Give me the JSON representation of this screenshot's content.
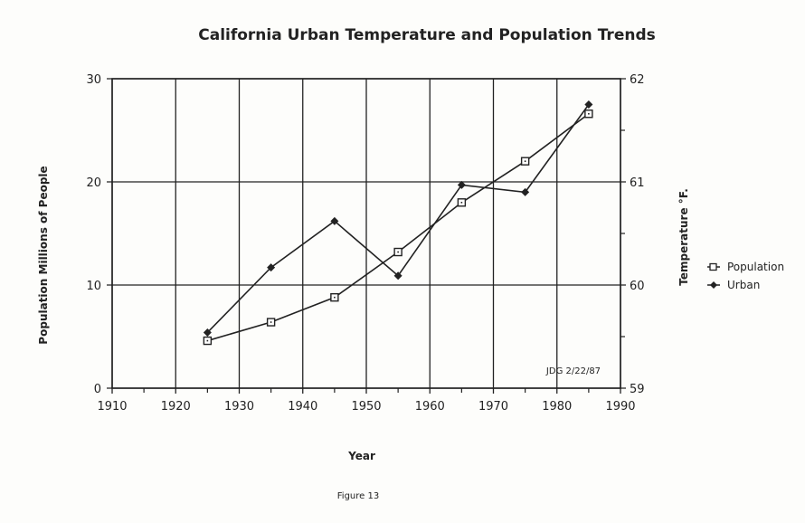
{
  "chart_data": {
    "type": "line",
    "title": "California Urban Temperature and Population Trends",
    "xlabel": "Year",
    "ylabel": "Population Millions of People",
    "y2label": "Temperature °F.",
    "xlim": [
      1910,
      1990
    ],
    "ylim": [
      0,
      30
    ],
    "y2lim": [
      59,
      62
    ],
    "x_ticks": [
      "1910",
      "1920",
      "1930",
      "1940",
      "1950",
      "1960",
      "1970",
      "1980",
      "1990"
    ],
    "y_ticks": [
      "0",
      "10",
      "20",
      "30"
    ],
    "y2_ticks": [
      "59",
      "60",
      "61",
      "62"
    ],
    "grid": true,
    "legend_position": "right",
    "x": [
      1925,
      1935,
      1945,
      1955,
      1965,
      1975,
      1985
    ],
    "series": [
      {
        "name": "Population",
        "axis": "left",
        "marker": "square",
        "values": [
          4.6,
          6.4,
          8.8,
          13.2,
          18.0,
          22.0,
          26.6
        ]
      },
      {
        "name": "Urban",
        "axis": "right",
        "marker": "diamond",
        "values": [
          59.54,
          60.17,
          60.62,
          60.09,
          60.97,
          60.9,
          61.75
        ]
      }
    ],
    "annotation": "JDG 2/22/87",
    "caption": "Figure 13"
  }
}
